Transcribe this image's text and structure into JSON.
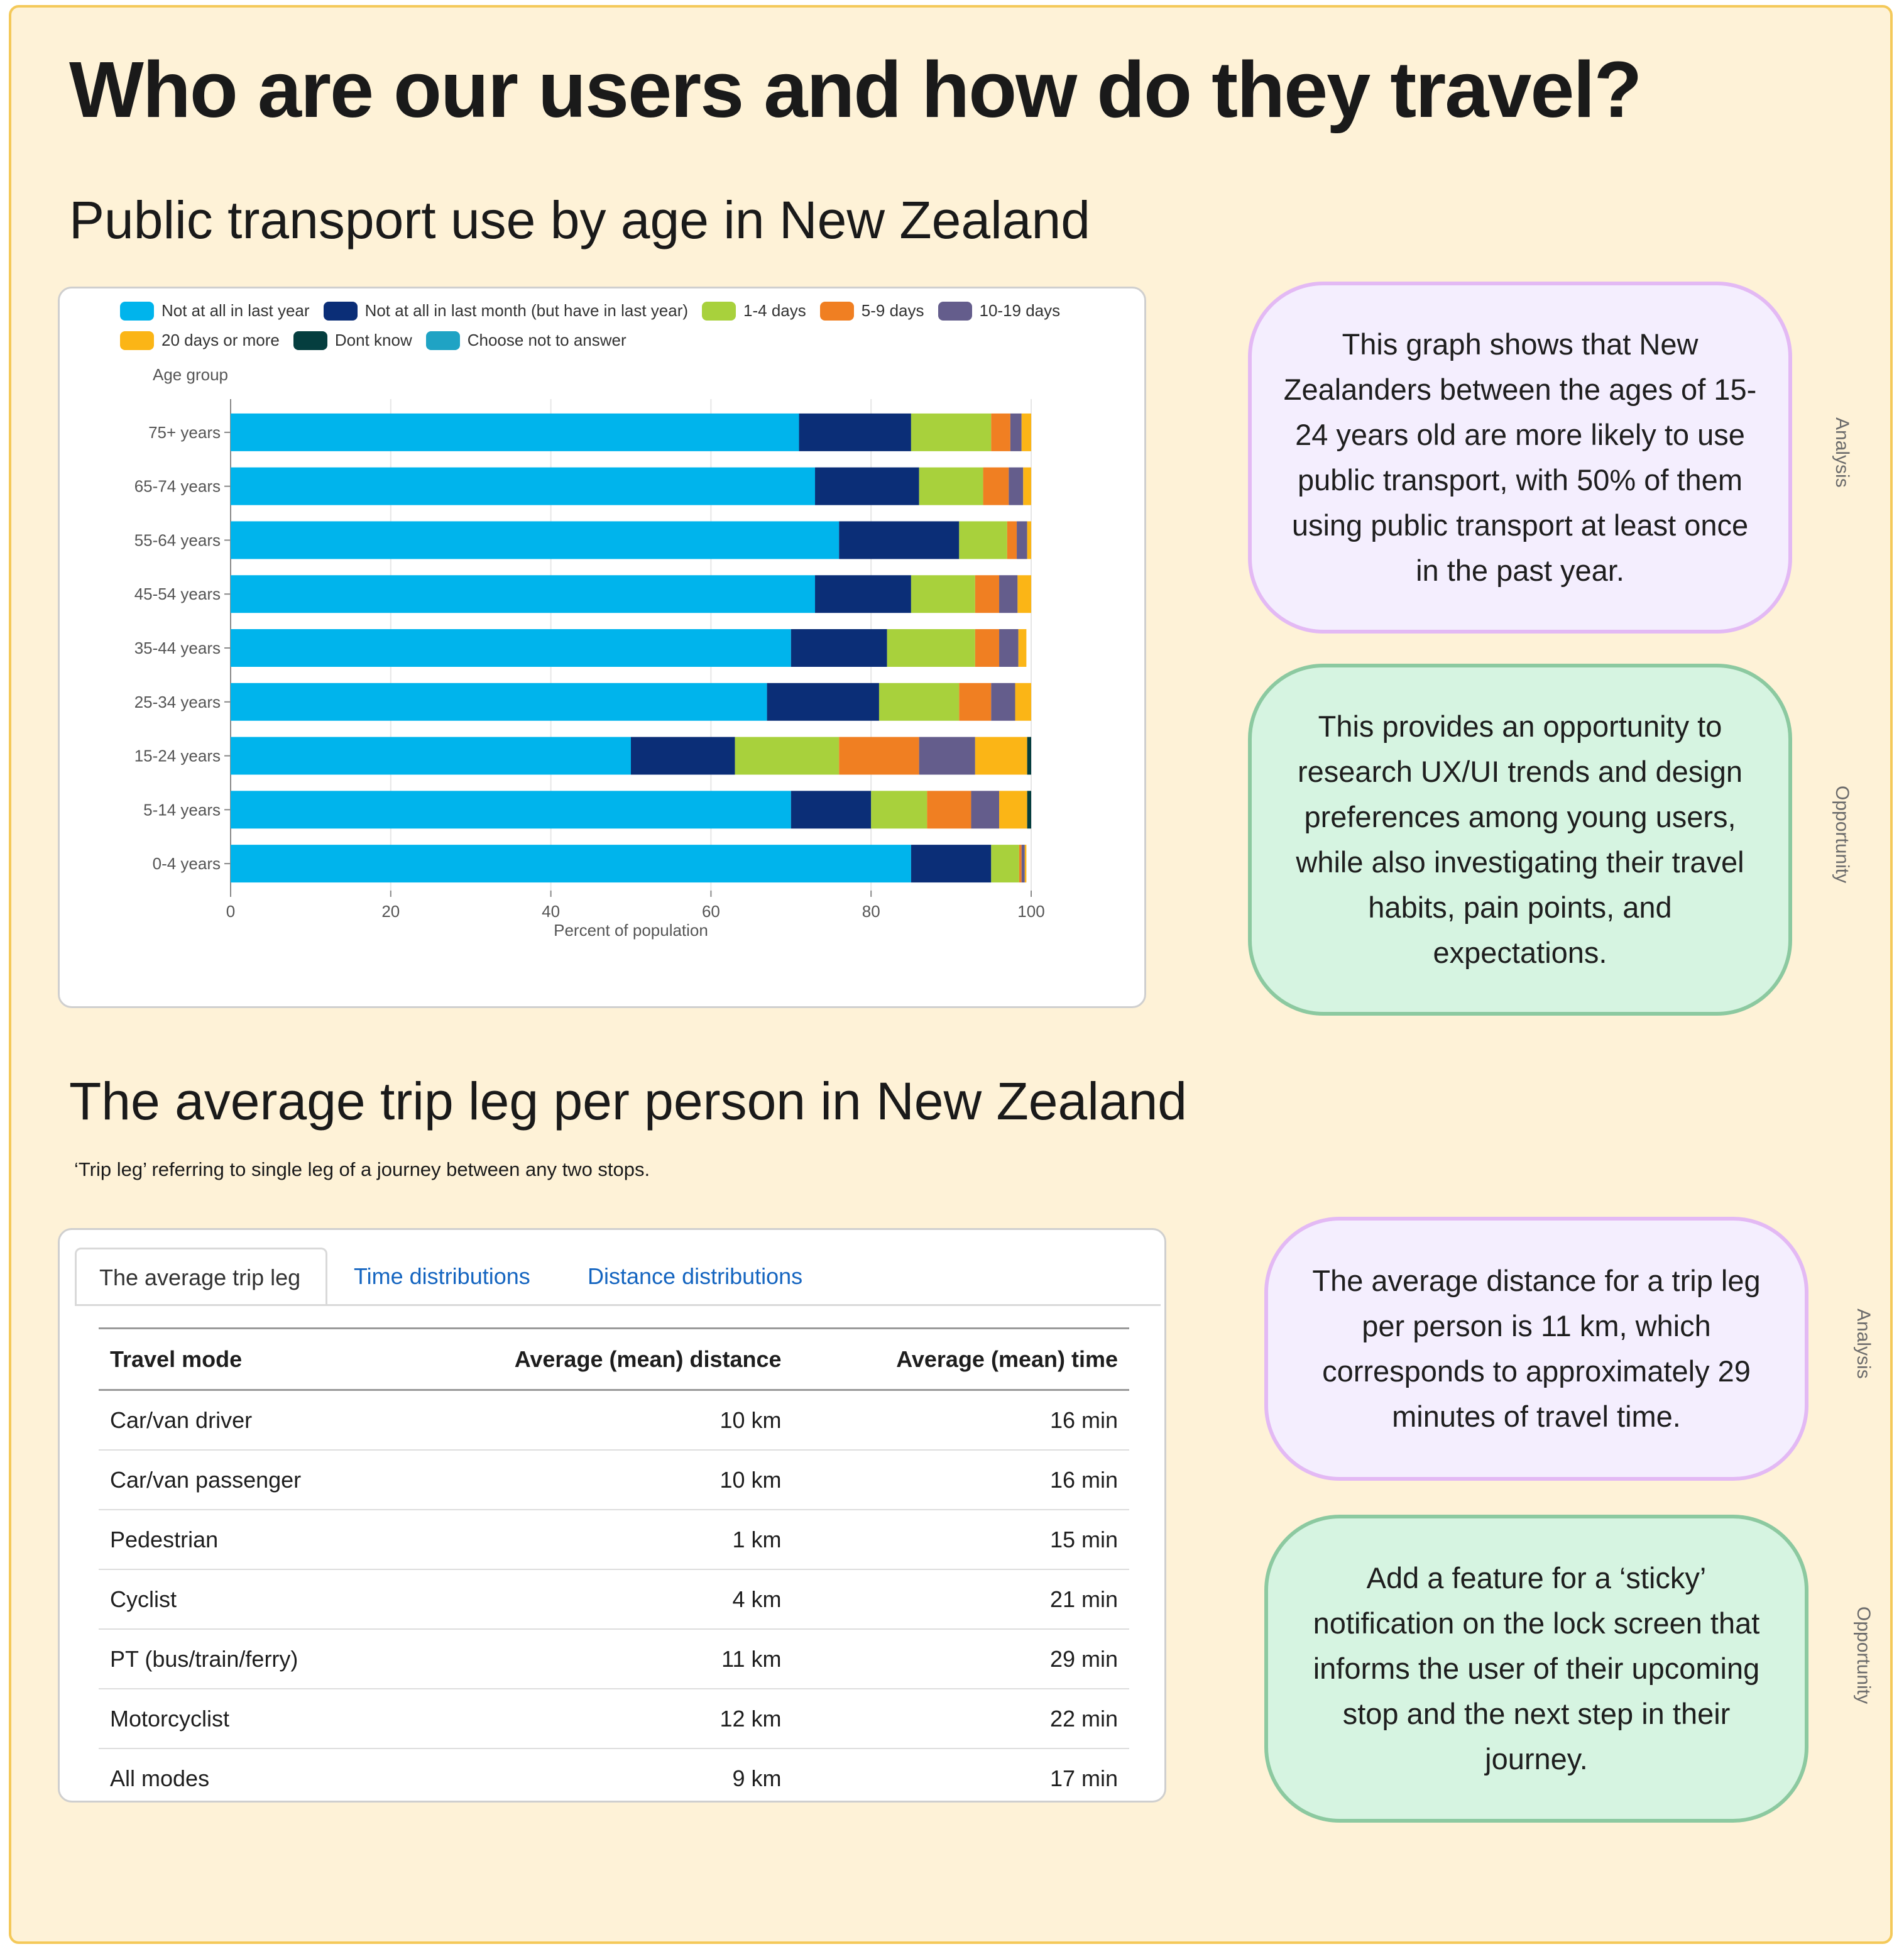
{
  "page": {
    "title": "Who are our users and how do they travel?"
  },
  "section1": {
    "title": "Public transport use by age in New Zealand"
  },
  "section2": {
    "title": "The average trip leg per person in New Zealand",
    "subtitle": "‘Trip leg’ referring to single leg of a journey between any two stops."
  },
  "notes": [
    {
      "text": "This graph shows that New Zealanders between the ages of 15-24 years old are more likely to use public transport, with 50% of them using public transport at least once in the past year.",
      "label": "Analysis"
    },
    {
      "text": "This provides an opportunity to research UX/UI trends and design preferences among young users, while also investigating their travel habits, pain points, and expectations.",
      "label": "Opportunity"
    },
    {
      "text": "The average distance for a trip leg per person is 11 km, which corresponds to approximately 29 minutes of travel time.",
      "label": "Analysis"
    },
    {
      "text": "Add a feature for a ‘sticky’ notification on the lock screen that informs the user of their upcoming stop and the next step in their journey.",
      "label": "Opportunity"
    }
  ],
  "chart_data": {
    "type": "bar",
    "orientation": "horizontal",
    "stacked": true,
    "title": "",
    "xlabel": "Percent of population",
    "ylabel": "Age group",
    "xlim": [
      0,
      100
    ],
    "xticks": [
      0,
      20,
      40,
      60,
      80,
      100
    ],
    "grid": true,
    "legend_position": "top",
    "categories": [
      "75+ years",
      "65-74 years",
      "55-64 years",
      "45-54 years",
      "35-44 years",
      "25-34 years",
      "15-24 years",
      "5-14 years",
      "0-4 years"
    ],
    "series": [
      {
        "name": "Not at all in last year",
        "color": "#00b4ec",
        "values": [
          71,
          73,
          76,
          73,
          70,
          67,
          50,
          70,
          85
        ]
      },
      {
        "name": "Not at all in last month (but have in last year)",
        "color": "#0b2e77",
        "values": [
          14,
          13,
          15,
          12,
          12,
          14,
          13,
          10,
          10
        ]
      },
      {
        "name": "1-4 days",
        "color": "#a8d13c",
        "values": [
          10,
          8,
          6,
          8,
          11,
          10,
          13,
          7,
          3.5
        ]
      },
      {
        "name": "5-9 days",
        "color": "#f07f22",
        "values": [
          2.4,
          3.2,
          1.2,
          3,
          3,
          4,
          10,
          5.5,
          0.3
        ]
      },
      {
        "name": "10-19 days",
        "color": "#645d8c",
        "values": [
          1.4,
          1.8,
          1.3,
          2.3,
          2.4,
          3,
          7,
          3.5,
          0.4
        ]
      },
      {
        "name": "20 days or more",
        "color": "#fbb516",
        "values": [
          1.2,
          1,
          0.5,
          1.7,
          1,
          2,
          6.5,
          3.5,
          0.2
        ]
      },
      {
        "name": "Dont know",
        "color": "#053e3f",
        "values": [
          0,
          0,
          0,
          0,
          0,
          0,
          0.5,
          0.5,
          0
        ]
      },
      {
        "name": "Choose not to answer",
        "color": "#1fa3c4",
        "values": [
          0,
          0,
          0,
          0,
          0,
          0,
          0,
          0,
          0
        ]
      }
    ]
  },
  "trip_table": {
    "tabs": [
      "The average trip leg",
      "Time distributions",
      "Distance distributions"
    ],
    "headers": [
      "Travel mode",
      "Average (mean) distance",
      "Average (mean) time"
    ],
    "rows": [
      [
        "Car/van driver",
        "10 km",
        "16 min"
      ],
      [
        "Car/van passenger",
        "10 km",
        "16 min"
      ],
      [
        "Pedestrian",
        "1 km",
        "15 min"
      ],
      [
        "Cyclist",
        "4 km",
        "21 min"
      ],
      [
        "PT (bus/train/ferry)",
        "11 km",
        "29 min"
      ],
      [
        "Motorcyclist",
        "12 km",
        "22 min"
      ],
      [
        "All modes",
        "9 km",
        "17 min"
      ]
    ]
  }
}
